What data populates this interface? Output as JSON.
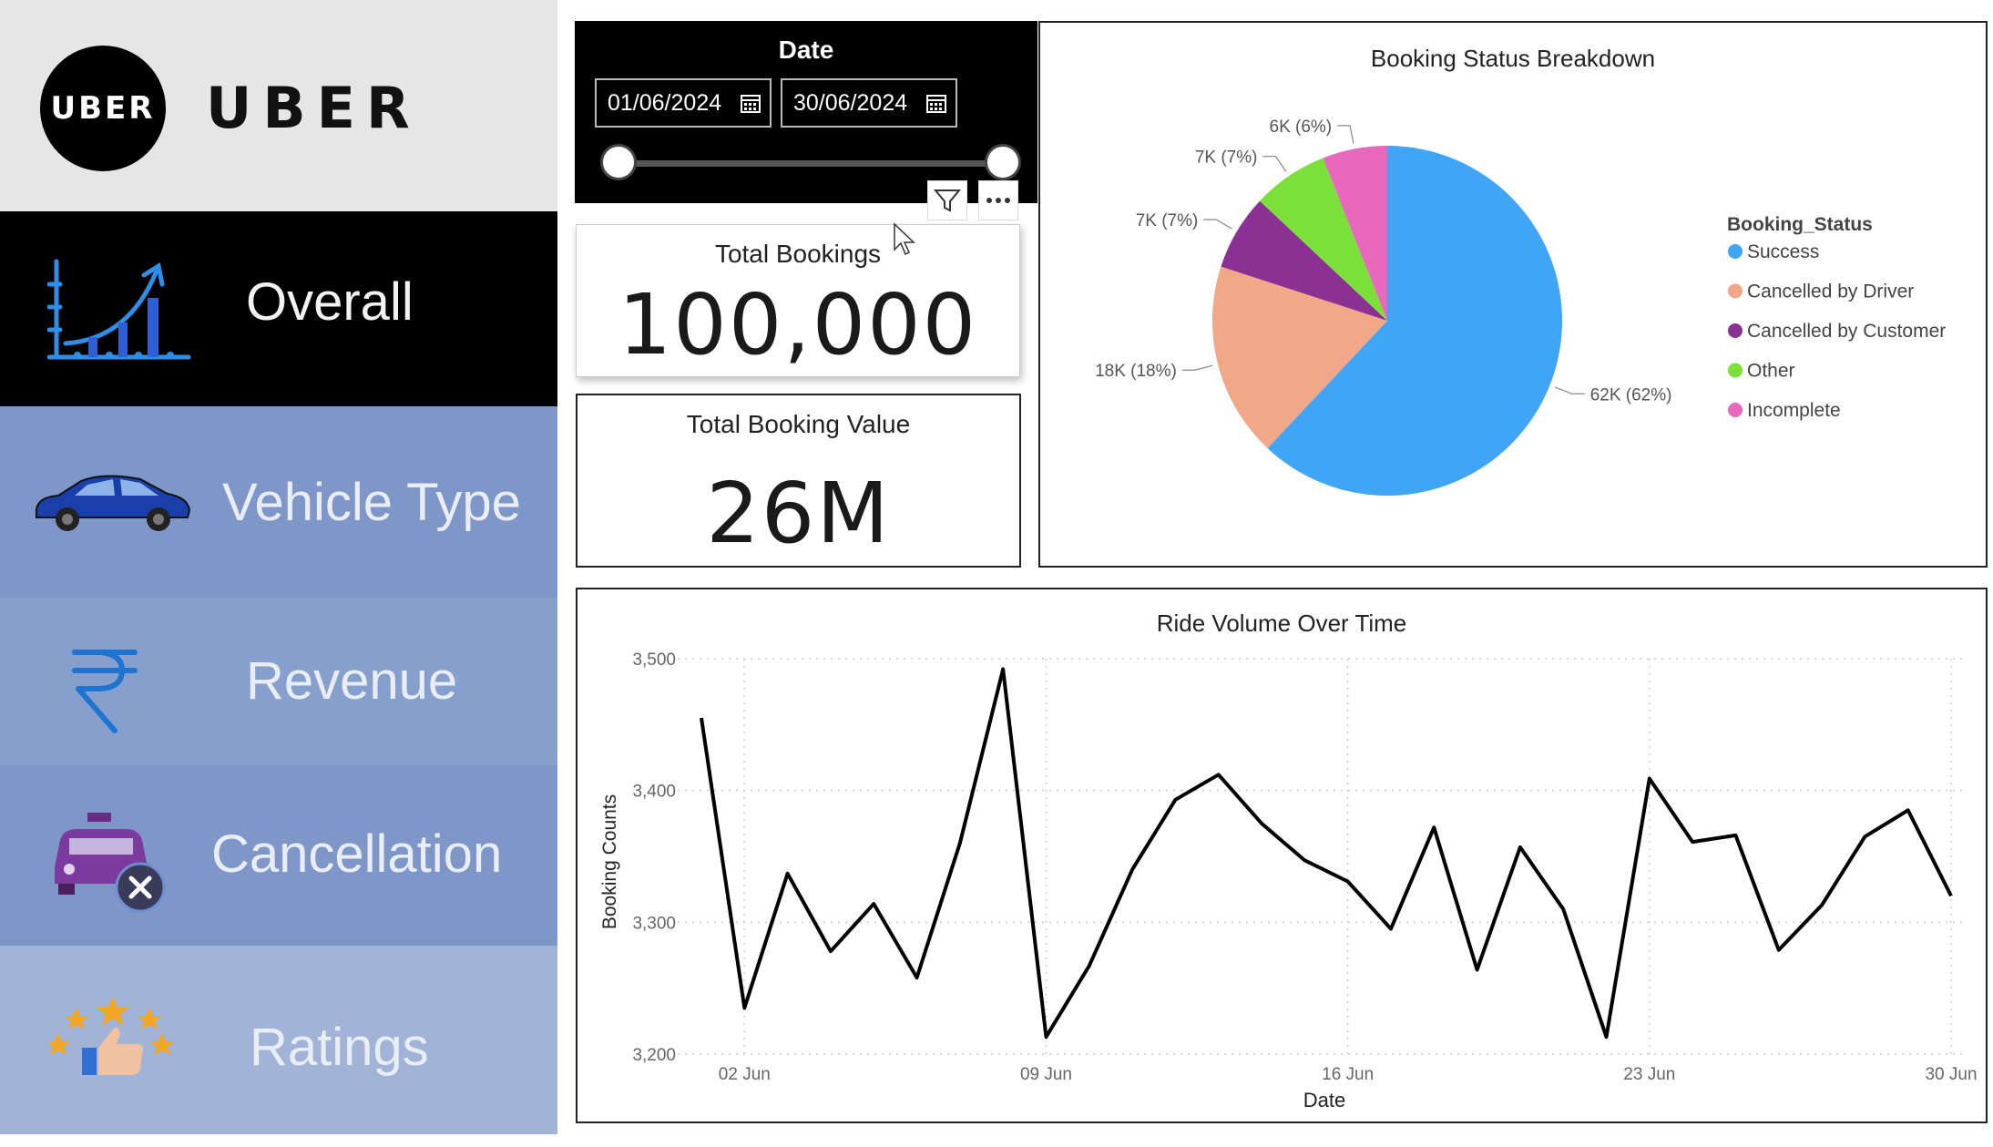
{
  "brand": {
    "logo_text": "UBER",
    "word": "UBER"
  },
  "nav": {
    "items": [
      {
        "label": "Overall",
        "icon": "growth-chart-icon",
        "active": true
      },
      {
        "label": "Vehicle Type",
        "icon": "car-icon",
        "active": false
      },
      {
        "label": "Revenue",
        "icon": "rupee-icon",
        "active": false
      },
      {
        "label": "Cancellation",
        "icon": "taxi-cancel-icon",
        "active": false
      },
      {
        "label": "Ratings",
        "icon": "thumbs-up-stars-icon",
        "active": false
      }
    ]
  },
  "date_slicer": {
    "title": "Date",
    "start": "01/06/2024",
    "end": "30/06/2024"
  },
  "kpis": {
    "total_bookings": {
      "title": "Total Bookings",
      "value": "100,000"
    },
    "total_booking_value": {
      "title": "Total Booking Value",
      "value": "26M"
    }
  },
  "colors": {
    "success": "#41a5f5",
    "cancelled_by_driver": "#f0a888",
    "cancelled_by_customer": "#8b3194",
    "other": "#7be03a",
    "incomplete": "#e768bd",
    "line": "#000000"
  },
  "chart_data": [
    {
      "type": "pie",
      "title": "Booking Status Breakdown",
      "legend_title": "Booking_Status",
      "legend_position": "right",
      "slices": [
        {
          "name": "Success",
          "value": 62,
          "label": "62K (62%)",
          "color": "#41a5f5"
        },
        {
          "name": "Cancelled by Driver",
          "value": 18,
          "label": "18K (18%)",
          "color": "#f0a888"
        },
        {
          "name": "Cancelled by Customer",
          "value": 7,
          "label": "7K (7%)",
          "color": "#8b3194"
        },
        {
          "name": "Other",
          "value": 7,
          "label": "7K (7%)",
          "color": "#7be03a"
        },
        {
          "name": "Incomplete",
          "value": 6,
          "label": "6K (6%)",
          "color": "#e768bd"
        }
      ]
    },
    {
      "type": "line",
      "title": "Ride Volume Over Time",
      "xlabel": "Date",
      "ylabel": "Booking Counts",
      "x": [
        1,
        2,
        3,
        4,
        5,
        6,
        7,
        8,
        9,
        10,
        11,
        12,
        13,
        14,
        15,
        16,
        17,
        18,
        19,
        20,
        21,
        22,
        23,
        24,
        25,
        26,
        27,
        28,
        29,
        30
      ],
      "values": [
        3455,
        3235,
        3337,
        3278,
        3314,
        3258,
        3360,
        3492,
        3213,
        3267,
        3340,
        3393,
        3412,
        3375,
        3347,
        3331,
        3295,
        3372,
        3264,
        3357,
        3310,
        3213,
        3409,
        3361,
        3366,
        3279,
        3313,
        3365,
        3385,
        3320
      ],
      "ylim": [
        3200,
        3500
      ],
      "yticks": [
        3200,
        3300,
        3400,
        3500
      ],
      "ytick_labels": [
        "3,200",
        "3,300",
        "3,400",
        "3,500"
      ],
      "xticks": [
        2,
        9,
        16,
        23,
        30
      ],
      "xtick_labels": [
        "02 Jun",
        "09 Jun",
        "16 Jun",
        "23 Jun",
        "30 Jun"
      ],
      "grid": true
    }
  ]
}
